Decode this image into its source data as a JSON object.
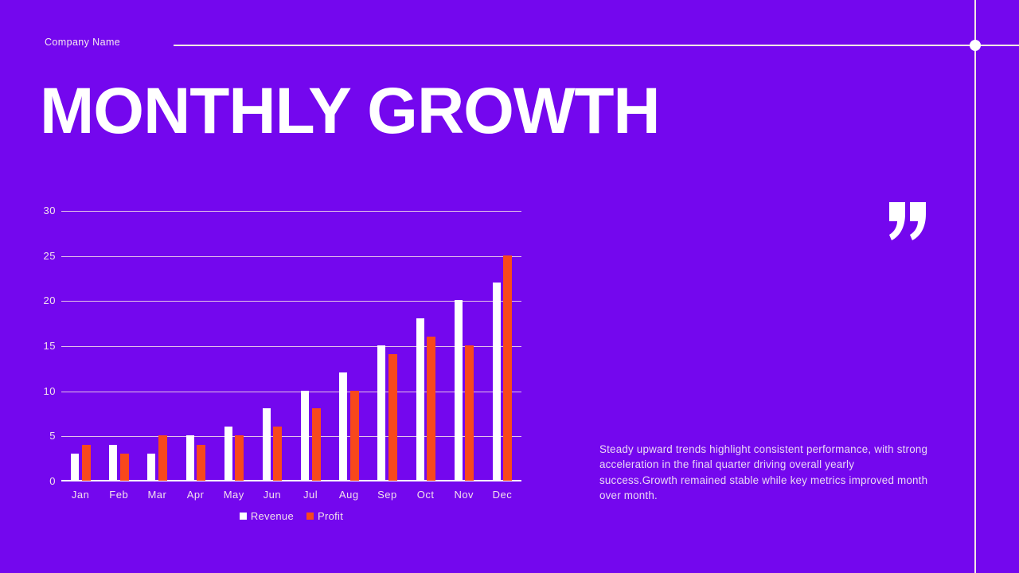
{
  "slide": {
    "background_color": "#7407EE",
    "line_color": "#F2E9E3",
    "dot_color": "#FFFFFF"
  },
  "header": {
    "company_name": "Company Name"
  },
  "title": "MONTHLY GROWTH",
  "chart_data": {
    "type": "bar",
    "title": "",
    "xlabel": "",
    "ylabel": "",
    "categories": [
      "Jan",
      "Feb",
      "Mar",
      "Apr",
      "May",
      "Jun",
      "Jul",
      "Aug",
      "Sep",
      "Oct",
      "Nov",
      "Dec"
    ],
    "series": [
      {
        "name": "Revenue",
        "color": "#FFFFFF",
        "values": [
          3,
          4,
          3,
          5,
          6,
          8,
          10,
          12,
          15,
          18,
          20,
          22
        ]
      },
      {
        "name": "Profit",
        "color": "#F8481C",
        "values": [
          4,
          3,
          5,
          4,
          5,
          6,
          8,
          10,
          14,
          16,
          15,
          25
        ]
      }
    ],
    "ylim": [
      0,
      30
    ],
    "ytick_interval": 5,
    "grid": true,
    "legend_position": "bottom-center"
  },
  "quote_icon": "closing-double-quote",
  "body_text": "Steady upward trends highlight consistent performance, with strong acceleration in the final quarter driving overall yearly success.Growth remained stable while key metrics improved month over month."
}
